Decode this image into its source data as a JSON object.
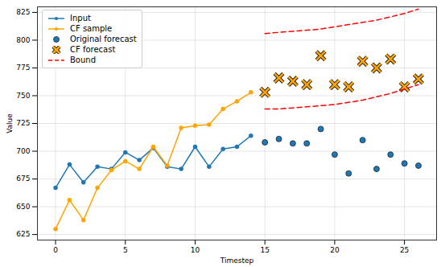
{
  "chart_data": {
    "type": "line",
    "x_label": "Timestep",
    "y_label": "Value",
    "xlim": [
      -1.3,
      27.3
    ],
    "ylim": [
      620,
      830
    ],
    "xticks": [
      0,
      5,
      10,
      15,
      20,
      25
    ],
    "yticks": [
      625,
      650,
      675,
      700,
      725,
      750,
      775,
      800,
      825
    ],
    "grid": true,
    "legend": "upper left",
    "series": [
      {
        "name": "Input",
        "type": "line",
        "marker": "o",
        "color": "#1f77b4",
        "x": [
          0,
          1,
          2,
          3,
          4,
          5,
          6,
          7,
          8,
          9,
          10,
          11,
          12,
          13,
          14
        ],
        "values": [
          667,
          688,
          672,
          686,
          684,
          699,
          692,
          703,
          686,
          684,
          704,
          686,
          702,
          704,
          714
        ]
      },
      {
        "name": "CF sample",
        "type": "line",
        "marker": "o",
        "color": "#ffa500",
        "x": [
          0,
          1,
          2,
          3,
          4,
          5,
          6,
          7,
          8,
          9,
          10,
          11,
          12,
          13,
          14
        ],
        "values": [
          630,
          656,
          638,
          667,
          683,
          691,
          684,
          704,
          687,
          721,
          723,
          724,
          738,
          745,
          753
        ]
      },
      {
        "name": "Original forecast",
        "type": "scatter",
        "marker": "o",
        "color": "#1f77b4",
        "x": [
          15,
          16,
          17,
          18,
          19,
          20,
          21,
          22,
          23,
          24,
          25,
          26
        ],
        "values": [
          708,
          711,
          707,
          707,
          720,
          697,
          680,
          710,
          684,
          697,
          689,
          687
        ]
      },
      {
        "name": "CF forecast",
        "type": "scatter",
        "marker": "x",
        "color": "#ffa500",
        "x": [
          15,
          16,
          17,
          18,
          19,
          20,
          21,
          22,
          23,
          24,
          25,
          26
        ],
        "values": [
          753,
          766,
          763,
          760,
          786,
          760,
          758,
          781,
          775,
          783,
          758,
          765
        ]
      },
      {
        "name": "Bound",
        "type": "line",
        "line_style": "dashed",
        "color": "#ff0000",
        "x": [
          15,
          16,
          17,
          18,
          19,
          20,
          21,
          22,
          23,
          24,
          25,
          26
        ],
        "lower": [
          738,
          738,
          739,
          740,
          741,
          742,
          744,
          746,
          749,
          752,
          756,
          760
        ],
        "upper": [
          806,
          807,
          808,
          809,
          810,
          812,
          814,
          816,
          818,
          821,
          824,
          828
        ]
      }
    ]
  }
}
